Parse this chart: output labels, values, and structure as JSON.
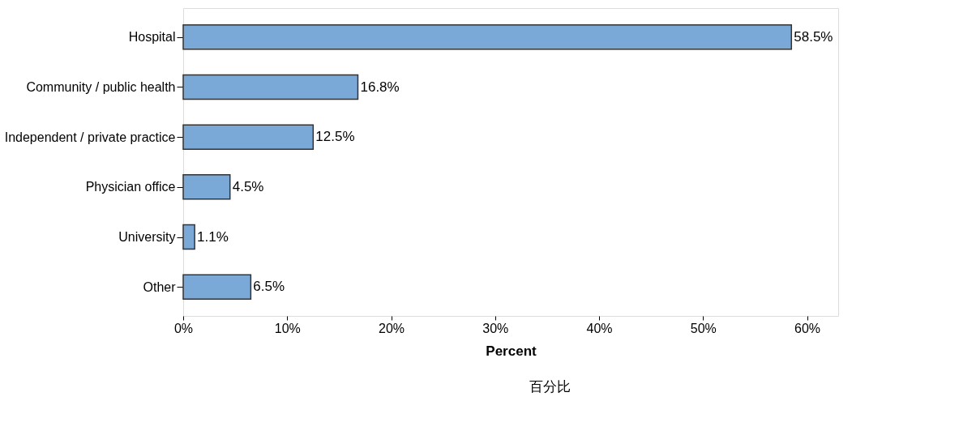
{
  "chart_data": {
    "type": "bar",
    "orientation": "horizontal",
    "categories": [
      "Hospital",
      "Community / public health",
      "Independent / private practice",
      "Physician office",
      "University",
      "Other"
    ],
    "values": [
      58.5,
      16.8,
      12.5,
      4.5,
      1.1,
      6.5
    ],
    "value_labels": [
      "58.5%",
      "16.8%",
      "12.5%",
      "4.5%",
      "1.1%",
      "6.5%"
    ],
    "color": "#7aa9d8",
    "xlim": [
      0,
      63
    ],
    "xticks": [
      {
        "value": 0,
        "label": "0%"
      },
      {
        "value": 10,
        "label": "10%"
      },
      {
        "value": 20,
        "label": "20%"
      },
      {
        "value": 30,
        "label": "30%"
      },
      {
        "value": 40,
        "label": "40%"
      },
      {
        "value": 50,
        "label": "50%"
      },
      {
        "value": 60,
        "label": "60%"
      }
    ],
    "xlabel": "Percent",
    "annotations": [
      "百分比"
    ],
    "grid": false
  }
}
